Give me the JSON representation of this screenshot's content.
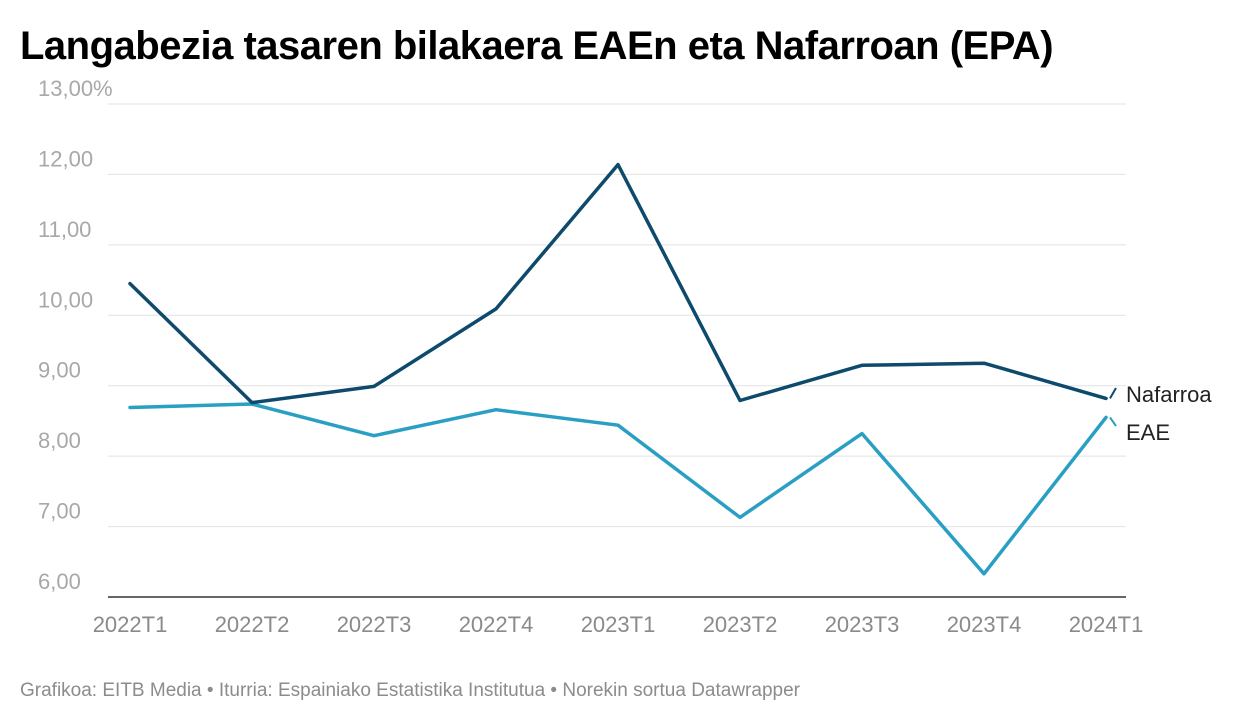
{
  "chart_data": {
    "type": "line",
    "title": "Langabezia tasaren bilakaera EAEn eta Nafarroan (EPA)",
    "xlabel": "",
    "ylabel": "",
    "ylim": [
      6,
      13
    ],
    "yticks": [
      "6,00",
      "7,00",
      "8,00",
      "9,00",
      "10,00",
      "11,00",
      "12,00",
      "13,00%"
    ],
    "categories": [
      "2022T1",
      "2022T2",
      "2022T3",
      "2022T4",
      "2023T1",
      "2023T2",
      "2023T3",
      "2023T4",
      "2024T1"
    ],
    "series": [
      {
        "name": "Nafarroa",
        "color": "#0d4a6b",
        "values": [
          10.45,
          8.76,
          8.99,
          10.09,
          12.14,
          8.79,
          9.29,
          9.32,
          8.82
        ]
      },
      {
        "name": "EAE",
        "color": "#2a9fc4",
        "values": [
          8.69,
          8.74,
          8.29,
          8.66,
          8.44,
          7.13,
          8.32,
          6.33,
          8.55
        ]
      }
    ]
  },
  "footer": "Grafikoa: EITB Media • Iturria: Espainiako Estatistika Institutua • Norekin sortua Datawrapper"
}
